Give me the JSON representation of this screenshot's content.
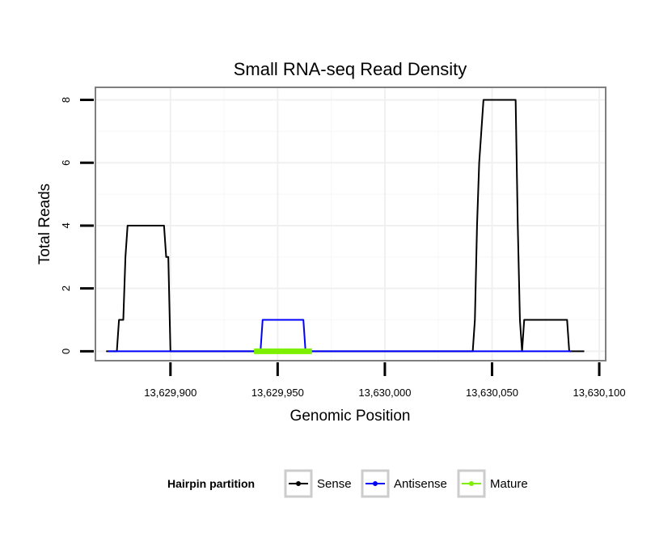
{
  "chart_data": {
    "type": "line",
    "title": "Small RNA-seq Read Density",
    "xlabel": "Genomic Position",
    "ylabel": "Total Reads",
    "xlim": [
      13629865,
      13630103
    ],
    "ylim": [
      -0.3,
      8.4
    ],
    "x_ticks": [
      13629900,
      13629950,
      13630000,
      13630050,
      13630100
    ],
    "x_tick_labels": [
      "13,629,900",
      "13,629,950",
      "13,630,000",
      "13,630,050",
      "13,630,100"
    ],
    "y_ticks": [
      0,
      2,
      4,
      6,
      8
    ],
    "y_tick_labels": [
      "0",
      "2",
      "4",
      "6",
      "8"
    ],
    "grid": true,
    "legend": {
      "title": "Hairpin partition",
      "position": "bottom",
      "entries": [
        "Sense",
        "Antisense",
        "Mature"
      ]
    },
    "series": [
      {
        "name": "Sense",
        "color": "#000000",
        "x": [
          13629870,
          13629875,
          13629876,
          13629878,
          13629879,
          13629880,
          13629897,
          13629898,
          13629899,
          13629900,
          13629941,
          13629967,
          13630041,
          13630042,
          13630043,
          13630044,
          13630045,
          13630046,
          13630047,
          13630061,
          13630062,
          13630063,
          13630064,
          13630065,
          13630085,
          13630086,
          13630087,
          13630093
        ],
        "values": [
          0,
          0,
          1,
          1,
          3,
          4,
          4,
          3,
          3,
          0,
          0,
          0,
          0,
          1,
          4,
          6,
          7,
          8,
          8,
          8,
          4,
          1,
          0,
          1,
          1,
          0,
          0,
          0
        ]
      },
      {
        "name": "Antisense",
        "color": "#0000ff",
        "x": [
          13629871,
          13629941,
          13629942,
          13629943,
          13629962,
          13629963,
          13629964,
          13630087
        ],
        "values": [
          0,
          0,
          0,
          1,
          1,
          0,
          0,
          0
        ]
      },
      {
        "name": "Mature",
        "color": "#7cf000",
        "x": [
          13629939,
          13629966
        ],
        "values": [
          0,
          0
        ]
      }
    ]
  }
}
